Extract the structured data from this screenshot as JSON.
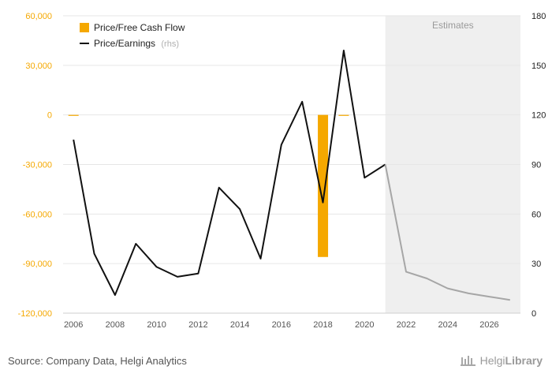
{
  "chart_data": {
    "type": "bar+line",
    "categories": [
      "2006",
      "2007",
      "2008",
      "2009",
      "2010",
      "2011",
      "2012",
      "2013",
      "2014",
      "2015",
      "2016",
      "2017",
      "2018",
      "2019",
      "2020",
      "2021",
      "2022",
      "2023",
      "2024",
      "2025",
      "2026",
      "2027"
    ],
    "x_tick_labels": [
      "2006",
      "2008",
      "2010",
      "2012",
      "2014",
      "2016",
      "2018",
      "2020",
      "2022",
      "2024",
      "2026"
    ],
    "series": [
      {
        "name": "Price/Free Cash Flow",
        "type": "bar",
        "axis": "left",
        "color": "#f5a800",
        "values": [
          -400,
          null,
          null,
          null,
          null,
          null,
          null,
          null,
          null,
          null,
          null,
          null,
          -86000,
          -300,
          null,
          null,
          null,
          null,
          null,
          null,
          null,
          null
        ]
      },
      {
        "name": "Price/Earnings",
        "rhs_label": "(rhs)",
        "type": "line",
        "axis": "right",
        "color": "#111111",
        "estimate_color": "#a6a6a6",
        "values": [
          105,
          36,
          11,
          42,
          28,
          22,
          24,
          76,
          63,
          33,
          102,
          128,
          67,
          159,
          82,
          90,
          25,
          21,
          15,
          12,
          10,
          8
        ]
      }
    ],
    "estimates_start_index": 15,
    "estimates_label": "Estimates",
    "left_axis": {
      "ylim": [
        -120000,
        60000
      ],
      "ticks": [
        "60,000",
        "30,000",
        "0",
        "-30,000",
        "-60,000",
        "-90,000",
        "-120,000"
      ]
    },
    "right_axis": {
      "ylim": [
        0,
        180
      ],
      "ticks": [
        "180",
        "150",
        "120",
        "90",
        "60",
        "30",
        "0"
      ]
    },
    "grid": true,
    "legend_position": "top-left"
  },
  "footer": {
    "source": "Source: Company Data, Helgi Analytics",
    "brand_light": "Helgi",
    "brand_bold": "Library"
  },
  "icons": {
    "brand": "library-building-icon"
  }
}
